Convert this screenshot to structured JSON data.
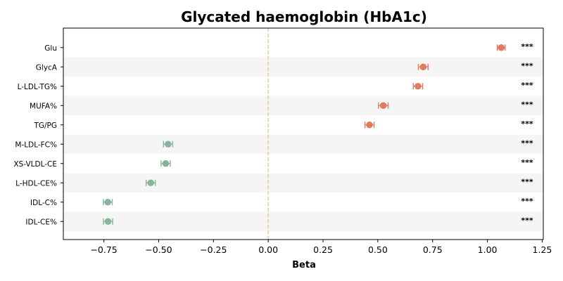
{
  "chart_data": {
    "type": "scatter",
    "subtype": "forest-plot",
    "title": "Glycated haemoglobin (HbA1c)",
    "xlabel": "Beta",
    "ylabel": "",
    "xlim": [
      -0.935,
      1.255
    ],
    "xticks": [
      -0.75,
      -0.5,
      -0.25,
      0.0,
      0.25,
      0.5,
      0.75,
      1.0,
      1.25
    ],
    "xtick_labels": [
      "−0.75",
      "−0.50",
      "−0.25",
      "0.00",
      "0.25",
      "0.50",
      "0.75",
      "1.00",
      "1.25"
    ],
    "reference_line": {
      "x": 0,
      "style": "dashed",
      "color": "#f5c77e"
    },
    "row_shading": "alternating",
    "grid": false,
    "colors": {
      "positive": "#e07b5f",
      "negative": "#86b59a",
      "shade": "#f5f5f5"
    },
    "rows": [
      {
        "label": "Glu",
        "beta": 1.063,
        "ci_low": 1.045,
        "ci_high": 1.081,
        "significance": "***"
      },
      {
        "label": "GlycA",
        "beta": 0.707,
        "ci_low": 0.685,
        "ci_high": 0.729,
        "significance": "***"
      },
      {
        "label": "L-LDL-TG%",
        "beta": 0.683,
        "ci_low": 0.662,
        "ci_high": 0.704,
        "significance": "***"
      },
      {
        "label": "MUFA%",
        "beta": 0.525,
        "ci_low": 0.503,
        "ci_high": 0.547,
        "significance": "***"
      },
      {
        "label": "TG/PG",
        "beta": 0.462,
        "ci_low": 0.441,
        "ci_high": 0.483,
        "significance": "***"
      },
      {
        "label": "M-LDL-FC%",
        "beta": -0.457,
        "ci_low": -0.478,
        "ci_high": -0.436,
        "significance": "***"
      },
      {
        "label": "XS-VLDL-CE",
        "beta": -0.468,
        "ci_low": -0.489,
        "ci_high": -0.447,
        "significance": "***"
      },
      {
        "label": "L-HDL-CE%",
        "beta": -0.536,
        "ci_low": -0.557,
        "ci_high": -0.515,
        "significance": "***"
      },
      {
        "label": "IDL-C%",
        "beta": -0.732,
        "ci_low": -0.752,
        "ci_high": -0.712,
        "significance": "***"
      },
      {
        "label": "IDL-CE%",
        "beta": -0.731,
        "ci_low": -0.752,
        "ci_high": -0.71,
        "significance": "***"
      }
    ]
  }
}
